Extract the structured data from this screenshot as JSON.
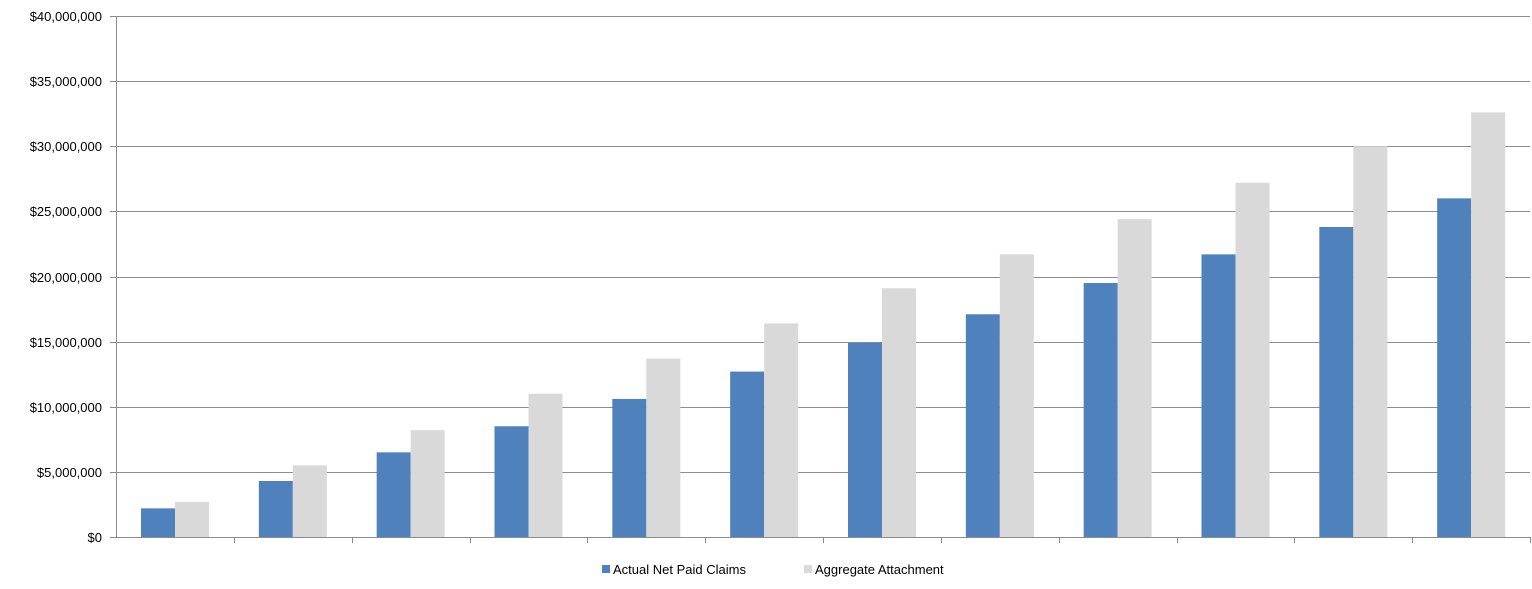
{
  "chart_data": {
    "type": "bar",
    "title": "",
    "xlabel": "",
    "ylabel": "",
    "categories": [
      "",
      "",
      "",
      "",
      "",
      "",
      "",
      "",
      "",
      "",
      "",
      ""
    ],
    "series": [
      {
        "name": "Actual Net Paid Claims",
        "color": "#4F81BD",
        "values": [
          2200000,
          4300000,
          6500000,
          8500000,
          10600000,
          12700000,
          14900000,
          17100000,
          19500000,
          21700000,
          23800000,
          26000000
        ]
      },
      {
        "name": "Aggregate Attachment",
        "color": "#D9D9D9",
        "values": [
          2700000,
          5500000,
          8200000,
          11000000,
          13700000,
          16400000,
          19100000,
          21700000,
          24400000,
          27200000,
          30000000,
          32600000
        ]
      }
    ],
    "ylim": [
      0,
      40000000
    ],
    "y_ticks": [
      0,
      5000000,
      10000000,
      15000000,
      20000000,
      25000000,
      30000000,
      35000000,
      40000000
    ],
    "y_tick_labels": [
      "$0",
      "$5,000,000",
      "$10,000,000",
      "$15,000,000",
      "$20,000,000",
      "$25,000,000",
      "$30,000,000",
      "$35,000,000",
      "$40,000,000"
    ],
    "grid": true,
    "legend_position": "bottom",
    "gridline_color": "#8C8C8C",
    "axis_color": "#8C8C8C"
  }
}
